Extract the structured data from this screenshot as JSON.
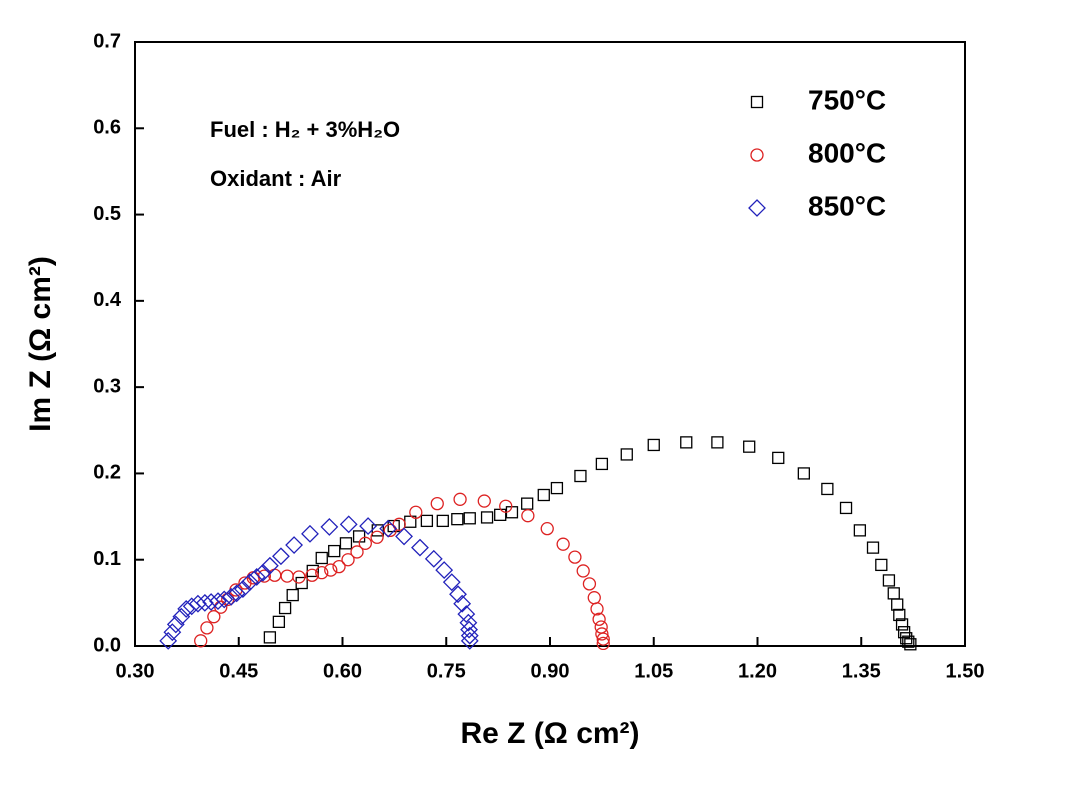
{
  "chart_data": {
    "type": "scatter",
    "x_label": "Re Z (Ω cm²)",
    "y_label": "Im Z (Ω cm²)",
    "annotations": [
      "Fuel : H₂ + 3%H₂O",
      "Oxidant : Air"
    ],
    "xlim": [
      0.3,
      1.5
    ],
    "xticks": [
      {
        "value": 0.3,
        "label": "0.30"
      },
      {
        "value": 0.45,
        "label": "0.45"
      },
      {
        "value": 0.6,
        "label": "0.60"
      },
      {
        "value": 0.75,
        "label": "0.75"
      },
      {
        "value": 0.9,
        "label": "0.90"
      },
      {
        "value": 1.05,
        "label": "1.05"
      },
      {
        "value": 1.2,
        "label": "1.20"
      },
      {
        "value": 1.35,
        "label": "1.35"
      },
      {
        "value": 1.5,
        "label": "1.50"
      }
    ],
    "ylim": [
      0,
      0.7
    ],
    "yticks": [
      {
        "value": 0,
        "label": "0.0"
      },
      0.1,
      0.2,
      0.3,
      0.4,
      0.5,
      0.6,
      0.7
    ],
    "legend_position": "upper right",
    "series": [
      {
        "name": "750°C",
        "color": "#000000",
        "marker": "square",
        "x": [
          0.495,
          0.508,
          0.517,
          0.528,
          0.541,
          0.557,
          0.57,
          0.588,
          0.605,
          0.624,
          0.651,
          0.674,
          0.698,
          0.722,
          0.745,
          0.766,
          0.784,
          0.809,
          0.828,
          0.845,
          0.867,
          0.891,
          0.91,
          0.944,
          0.975,
          1.011,
          1.05,
          1.097,
          1.142,
          1.188,
          1.23,
          1.267,
          1.301,
          1.328,
          1.348,
          1.367,
          1.379,
          1.39,
          1.397,
          1.402,
          1.405,
          1.409,
          1.412,
          1.415,
          1.418,
          1.421
        ],
        "values": [
          0.01,
          0.028,
          0.044,
          0.059,
          0.073,
          0.087,
          0.102,
          0.11,
          0.119,
          0.127,
          0.134,
          0.139,
          0.144,
          0.145,
          0.145,
          0.147,
          0.148,
          0.149,
          0.152,
          0.155,
          0.165,
          0.175,
          0.183,
          0.197,
          0.211,
          0.222,
          0.233,
          0.236,
          0.236,
          0.231,
          0.218,
          0.2,
          0.182,
          0.16,
          0.134,
          0.114,
          0.094,
          0.076,
          0.061,
          0.048,
          0.036,
          0.025,
          0.016,
          0.009,
          0.005,
          0.002
        ]
      },
      {
        "name": "800°C",
        "color": "#dd2222",
        "marker": "circle",
        "x": [
          0.395,
          0.404,
          0.414,
          0.424,
          0.434,
          0.446,
          0.459,
          0.471,
          0.487,
          0.502,
          0.52,
          0.537,
          0.556,
          0.57,
          0.583,
          0.595,
          0.608,
          0.621,
          0.633,
          0.65,
          0.669,
          0.682,
          0.706,
          0.737,
          0.77,
          0.805,
          0.836,
          0.868,
          0.896,
          0.919,
          0.936,
          0.948,
          0.957,
          0.964,
          0.968,
          0.971,
          0.974,
          0.975,
          0.977,
          0.977
        ],
        "values": [
          0.006,
          0.021,
          0.034,
          0.045,
          0.054,
          0.065,
          0.073,
          0.079,
          0.081,
          0.082,
          0.081,
          0.08,
          0.082,
          0.085,
          0.088,
          0.092,
          0.1,
          0.109,
          0.119,
          0.126,
          0.134,
          0.141,
          0.155,
          0.165,
          0.17,
          0.168,
          0.162,
          0.151,
          0.136,
          0.118,
          0.103,
          0.087,
          0.072,
          0.056,
          0.043,
          0.031,
          0.022,
          0.014,
          0.008,
          0.003
        ]
      },
      {
        "name": "850°C",
        "color": "#2222bb",
        "marker": "diamond",
        "x": [
          0.348,
          0.354,
          0.359,
          0.367,
          0.374,
          0.382,
          0.391,
          0.401,
          0.41,
          0.42,
          0.429,
          0.439,
          0.447,
          0.456,
          0.466,
          0.476,
          0.485,
          0.495,
          0.511,
          0.53,
          0.553,
          0.581,
          0.609,
          0.637,
          0.666,
          0.689,
          0.712,
          0.732,
          0.747,
          0.758,
          0.767,
          0.773,
          0.779,
          0.782,
          0.783,
          0.784,
          0.784
        ],
        "values": [
          0.006,
          0.016,
          0.025,
          0.034,
          0.043,
          0.046,
          0.049,
          0.05,
          0.051,
          0.052,
          0.054,
          0.057,
          0.061,
          0.066,
          0.074,
          0.08,
          0.085,
          0.093,
          0.104,
          0.117,
          0.13,
          0.138,
          0.141,
          0.139,
          0.136,
          0.127,
          0.114,
          0.101,
          0.088,
          0.074,
          0.06,
          0.049,
          0.037,
          0.027,
          0.019,
          0.012,
          0.006
        ]
      }
    ]
  }
}
